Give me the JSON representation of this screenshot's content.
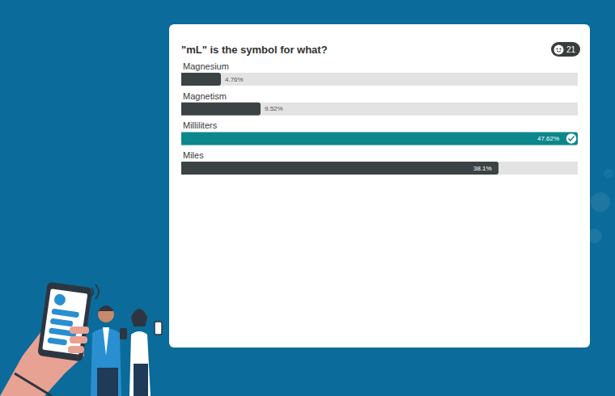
{
  "chart_data": {
    "type": "bar",
    "orientation": "horizontal",
    "title": "\"mL\" is the symbol for what?",
    "categories": [
      "Magnesium",
      "Magnetism",
      "Milliliters",
      "Miles"
    ],
    "values": [
      4.76,
      9.52,
      47.62,
      38.1
    ],
    "value_labels": [
      "4.76%",
      "9.52%",
      "47.62%",
      "38.1%"
    ],
    "colors": [
      "#3b4344",
      "#3b4344",
      "#0c878c",
      "#3b4344"
    ],
    "data_labels": true,
    "xlim": [
      0,
      47.62
    ],
    "tick_labels": false,
    "grid": false,
    "annotations": [
      "21"
    ]
  }
}
